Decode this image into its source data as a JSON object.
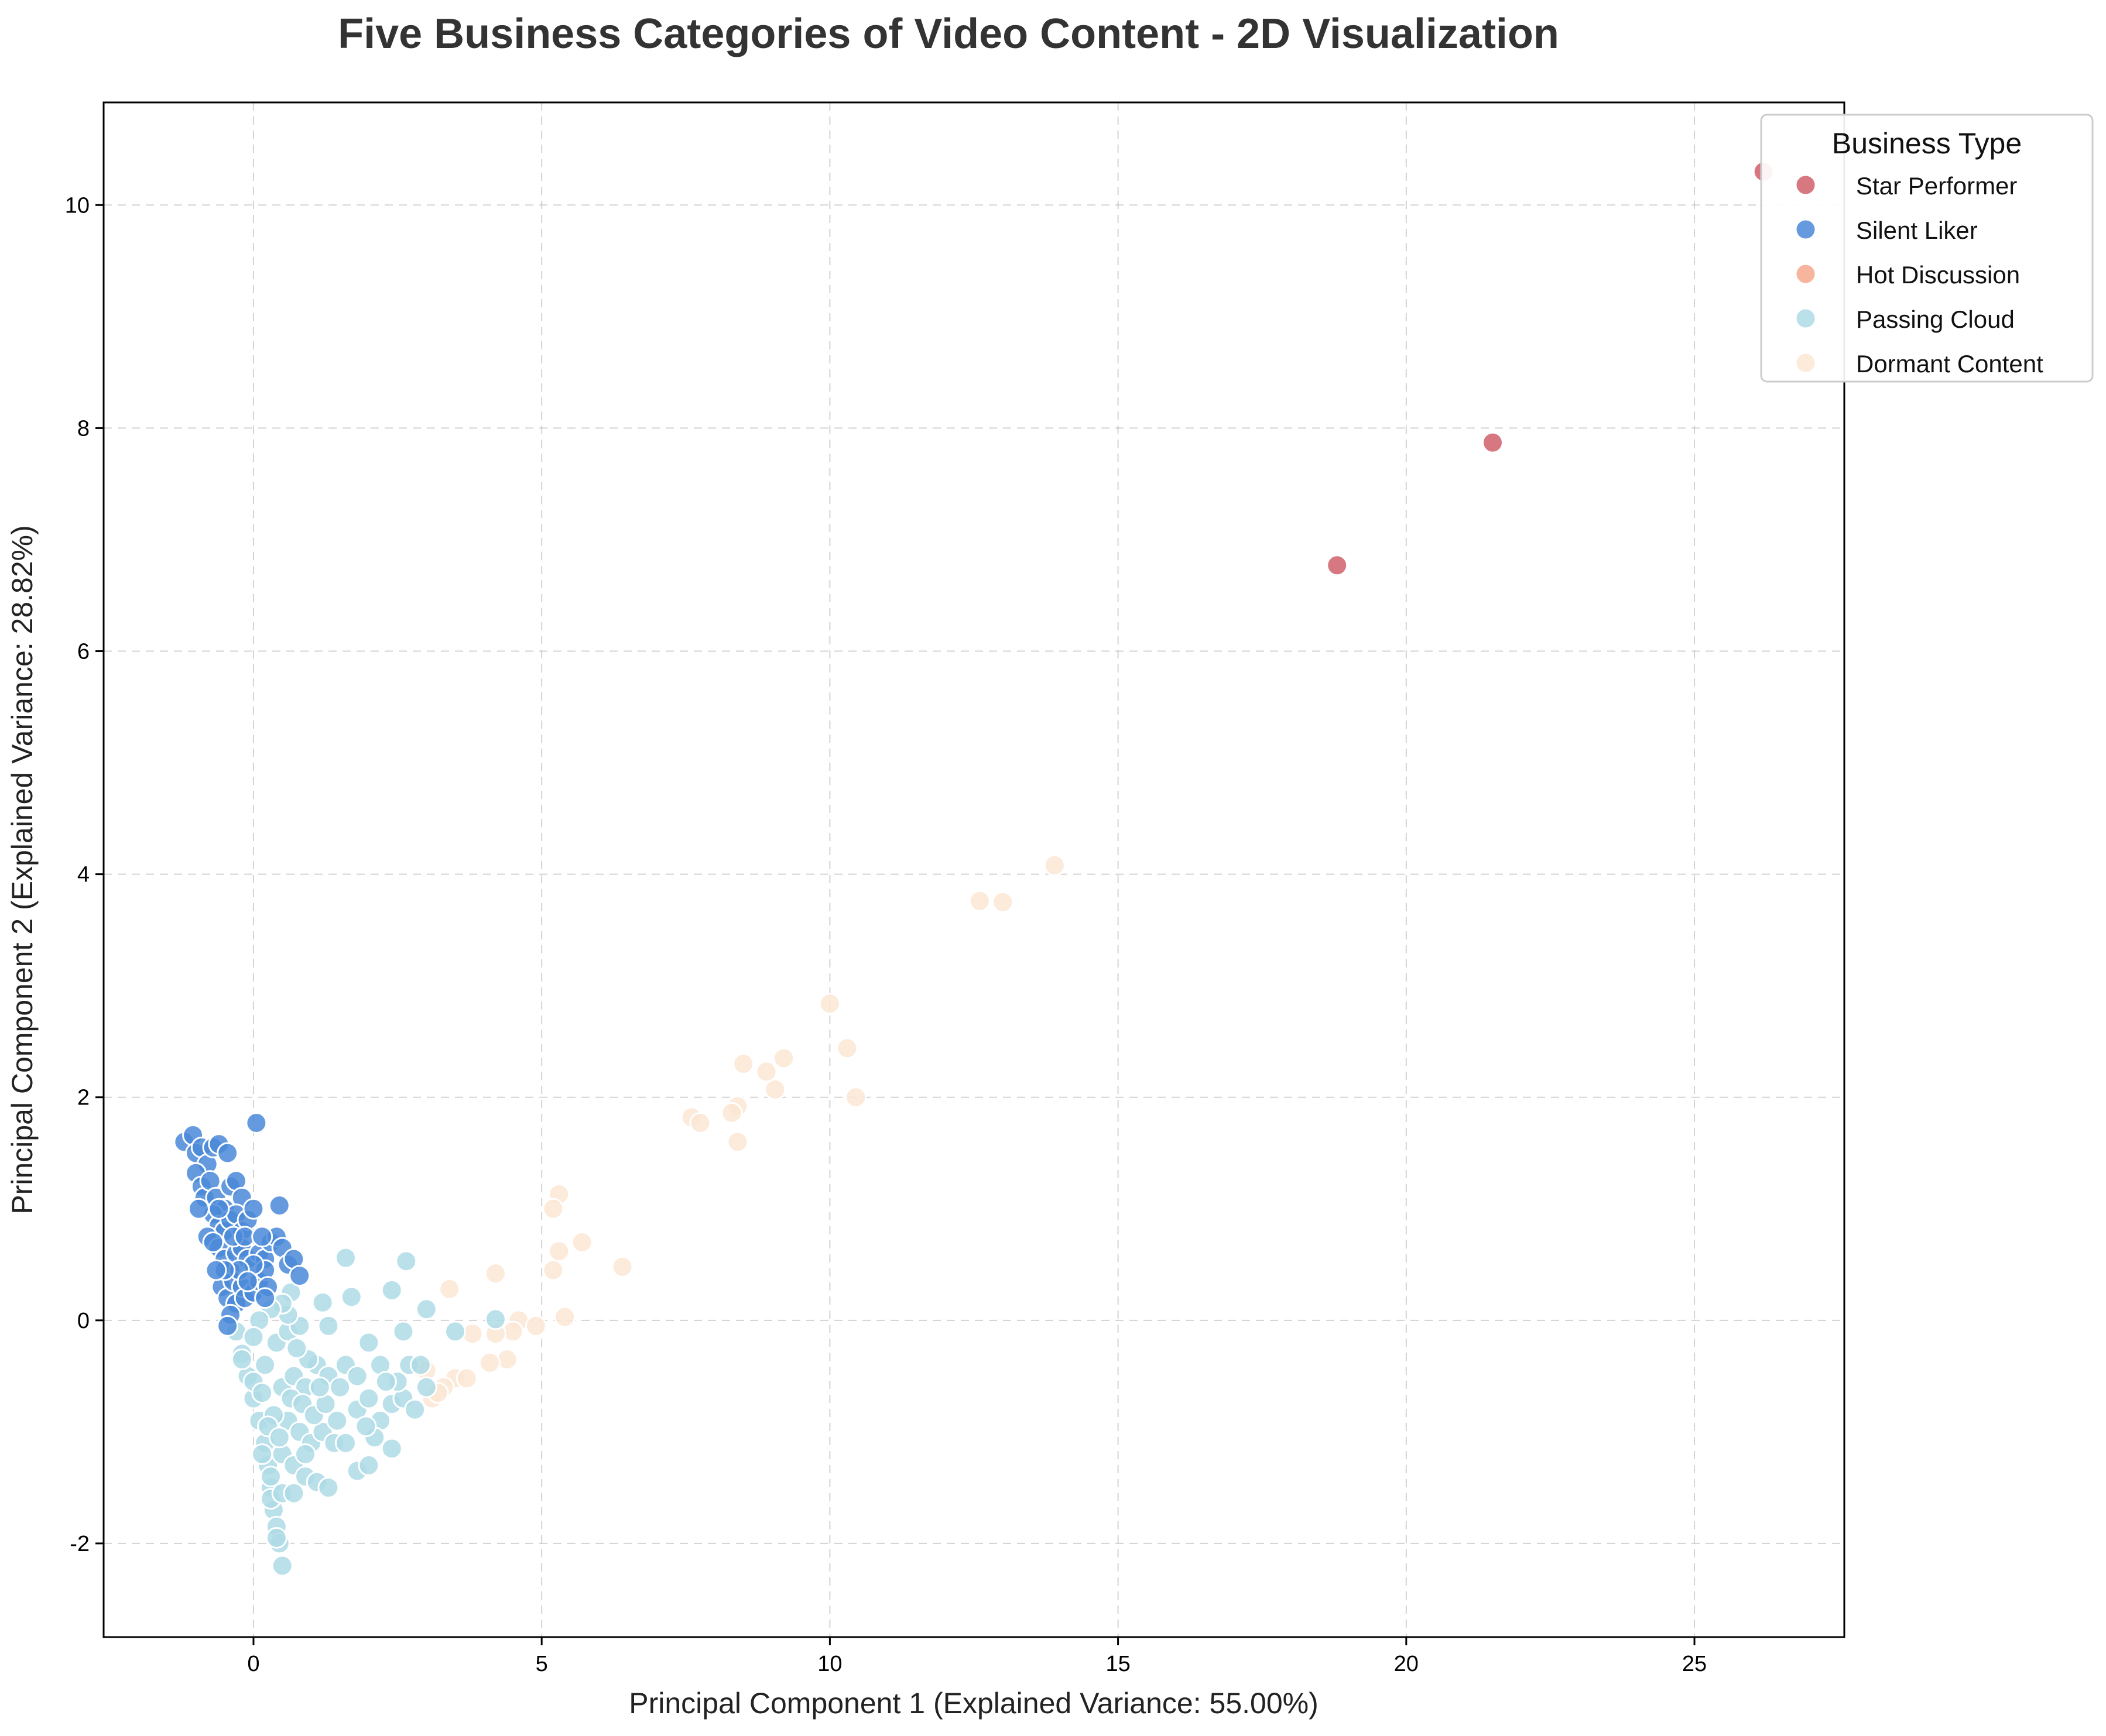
{
  "chart_data": {
    "type": "scatter",
    "title": "Five Business Categories of Video Content - 2D Visualization",
    "xlabel": "Principal Component 1 (Explained Variance: 55.00%)",
    "ylabel": "Principal Component 2 (Explained Variance: 28.82%)",
    "xlim": [
      -2.6,
      27.6
    ],
    "ylim": [
      -2.84,
      10.92
    ],
    "xticks": [
      0,
      5,
      10,
      15,
      20,
      25
    ],
    "yticks": [
      -2,
      0,
      2,
      4,
      6,
      8,
      10
    ],
    "xtick_labels": [
      "0",
      "5",
      "10",
      "15",
      "20",
      "25"
    ],
    "ytick_labels": [
      "-2",
      "0",
      "2",
      "4",
      "6",
      "8",
      "10"
    ],
    "grid": true,
    "legend": {
      "title": "Business Type",
      "placement": "upper-right-outside"
    },
    "series": [
      {
        "name": "Star Performer",
        "color": "#d0606a",
        "points": [
          [
            26.2,
            10.3
          ],
          [
            21.5,
            7.87
          ],
          [
            18.8,
            6.77
          ]
        ]
      },
      {
        "name": "Silent Liker",
        "color": "#4a8ad8",
        "points": [
          [
            -1.2,
            1.6
          ],
          [
            -1.05,
            1.66
          ],
          [
            -1.0,
            1.5
          ],
          [
            -0.9,
            1.55
          ],
          [
            -0.8,
            1.4
          ],
          [
            -0.7,
            1.55
          ],
          [
            -0.6,
            1.58
          ],
          [
            -0.45,
            1.5
          ],
          [
            -1.0,
            1.32
          ],
          [
            -0.9,
            1.2
          ],
          [
            -0.85,
            1.1
          ],
          [
            -0.75,
            1.25
          ],
          [
            -0.65,
            1.1
          ],
          [
            -0.5,
            1.0
          ],
          [
            -0.4,
            1.2
          ],
          [
            -0.3,
            1.25
          ],
          [
            -0.2,
            1.1
          ],
          [
            -0.7,
            0.95
          ],
          [
            -0.6,
            0.85
          ],
          [
            -0.5,
            0.8
          ],
          [
            -0.4,
            0.9
          ],
          [
            -0.3,
            0.95
          ],
          [
            -0.2,
            0.8
          ],
          [
            -0.1,
            0.9
          ],
          [
            0.0,
            1.0
          ],
          [
            -0.8,
            0.75
          ],
          [
            -0.6,
            0.65
          ],
          [
            -0.5,
            0.55
          ],
          [
            -0.4,
            0.45
          ],
          [
            -0.3,
            0.6
          ],
          [
            -0.2,
            0.65
          ],
          [
            -0.1,
            0.55
          ],
          [
            0.1,
            0.6
          ],
          [
            0.2,
            0.55
          ],
          [
            0.3,
            0.7
          ],
          [
            0.4,
            0.75
          ],
          [
            0.5,
            0.65
          ],
          [
            0.6,
            0.5
          ],
          [
            0.7,
            0.55
          ],
          [
            0.8,
            0.4
          ],
          [
            0.45,
            1.03
          ],
          [
            0.05,
            1.77
          ],
          [
            -0.55,
            0.3
          ],
          [
            -0.45,
            0.2
          ],
          [
            -0.35,
            0.35
          ],
          [
            -0.3,
            0.15
          ],
          [
            -0.4,
            0.05
          ],
          [
            -0.45,
            -0.05
          ],
          [
            -0.2,
            0.3
          ],
          [
            -0.15,
            0.2
          ],
          [
            0.0,
            0.25
          ],
          [
            0.1,
            0.35
          ],
          [
            0.2,
            0.45
          ],
          [
            0.25,
            0.3
          ],
          [
            -0.6,
            1.0
          ],
          [
            -0.7,
            0.7
          ],
          [
            -0.95,
            1.0
          ],
          [
            -0.35,
            0.75
          ],
          [
            0.0,
            0.5
          ],
          [
            -0.25,
            0.45
          ],
          [
            -0.5,
            0.45
          ],
          [
            -0.15,
            0.75
          ],
          [
            0.15,
            0.75
          ],
          [
            -0.65,
            0.45
          ],
          [
            -0.1,
            0.35
          ],
          [
            0.2,
            0.2
          ]
        ]
      },
      {
        "name": "Hot Discussion",
        "color": "#f7a88c",
        "points": []
      },
      {
        "name": "Passing Cloud",
        "color": "#aedbe6",
        "points": [
          [
            -0.3,
            -0.1
          ],
          [
            -0.2,
            -0.3
          ],
          [
            -0.1,
            -0.5
          ],
          [
            0.0,
            -0.7
          ],
          [
            0.1,
            -0.9
          ],
          [
            0.2,
            -1.1
          ],
          [
            0.25,
            -1.3
          ],
          [
            0.3,
            -1.5
          ],
          [
            0.35,
            -1.7
          ],
          [
            0.4,
            -1.85
          ],
          [
            0.45,
            -2.0
          ],
          [
            0.5,
            -2.2
          ],
          [
            0.3,
            -1.6
          ],
          [
            0.4,
            -1.95
          ],
          [
            0.0,
            -0.55
          ],
          [
            0.2,
            -0.4
          ],
          [
            0.4,
            -0.2
          ],
          [
            0.6,
            -0.1
          ],
          [
            0.8,
            -0.05
          ],
          [
            0.6,
            0.05
          ],
          [
            0.65,
            0.25
          ],
          [
            0.5,
            0.15
          ],
          [
            0.3,
            0.1
          ],
          [
            0.1,
            0.0
          ],
          [
            0.5,
            -0.6
          ],
          [
            0.7,
            -0.5
          ],
          [
            0.9,
            -0.6
          ],
          [
            1.1,
            -0.4
          ],
          [
            1.3,
            -0.5
          ],
          [
            1.5,
            -0.6
          ],
          [
            0.6,
            -0.9
          ],
          [
            0.8,
            -1.0
          ],
          [
            1.0,
            -1.1
          ],
          [
            1.2,
            -1.0
          ],
          [
            1.4,
            -1.1
          ],
          [
            1.6,
            -1.1
          ],
          [
            0.5,
            -1.2
          ],
          [
            0.7,
            -1.3
          ],
          [
            0.9,
            -1.4
          ],
          [
            1.1,
            -1.45
          ],
          [
            1.3,
            -1.5
          ],
          [
            0.5,
            -1.55
          ],
          [
            0.3,
            -1.4
          ],
          [
            0.7,
            -1.55
          ],
          [
            0.9,
            -1.2
          ],
          [
            1.8,
            -1.35
          ],
          [
            2.0,
            -1.3
          ],
          [
            2.4,
            -1.15
          ],
          [
            1.8,
            -0.8
          ],
          [
            2.0,
            -0.7
          ],
          [
            2.2,
            -0.9
          ],
          [
            2.4,
            -0.75
          ],
          [
            2.6,
            -0.7
          ],
          [
            2.8,
            -0.8
          ],
          [
            1.6,
            -0.4
          ],
          [
            1.8,
            -0.5
          ],
          [
            2.0,
            -0.2
          ],
          [
            2.2,
            -0.4
          ],
          [
            2.5,
            -0.55
          ],
          [
            2.7,
            -0.4
          ],
          [
            2.9,
            -0.4
          ],
          [
            3.0,
            -0.6
          ],
          [
            3.5,
            -0.1
          ],
          [
            4.2,
            0.01
          ],
          [
            2.6,
            -0.1
          ],
          [
            1.3,
            -0.05
          ],
          [
            1.6,
            0.56
          ],
          [
            2.65,
            0.53
          ],
          [
            2.4,
            0.27
          ],
          [
            1.7,
            0.21
          ],
          [
            3.0,
            0.1
          ],
          [
            1.2,
            0.16
          ],
          [
            0.0,
            -0.15
          ],
          [
            -0.2,
            -0.35
          ],
          [
            0.15,
            -0.65
          ],
          [
            0.35,
            -0.85
          ],
          [
            0.65,
            -0.7
          ],
          [
            0.85,
            -0.75
          ],
          [
            1.05,
            -0.85
          ],
          [
            1.25,
            -0.75
          ],
          [
            1.45,
            -0.9
          ],
          [
            1.15,
            -0.6
          ],
          [
            0.95,
            -0.35
          ],
          [
            0.75,
            -0.25
          ],
          [
            0.25,
            -0.95
          ],
          [
            0.45,
            -1.05
          ],
          [
            2.1,
            -1.05
          ],
          [
            2.3,
            -0.55
          ],
          [
            1.95,
            -0.95
          ],
          [
            0.15,
            -1.2
          ]
        ]
      },
      {
        "name": "Dormant Content",
        "color": "#fbe6d4",
        "points": [
          [
            13.9,
            4.08
          ],
          [
            12.6,
            3.76
          ],
          [
            13.0,
            3.75
          ],
          [
            10.0,
            2.84
          ],
          [
            10.3,
            2.44
          ],
          [
            9.2,
            2.35
          ],
          [
            8.5,
            2.3
          ],
          [
            8.9,
            2.23
          ],
          [
            9.05,
            2.07
          ],
          [
            10.45,
            2.0
          ],
          [
            8.4,
            1.92
          ],
          [
            8.3,
            1.86
          ],
          [
            7.6,
            1.82
          ],
          [
            7.75,
            1.77
          ],
          [
            8.4,
            1.6
          ],
          [
            5.3,
            1.13
          ],
          [
            5.2,
            1.0
          ],
          [
            5.7,
            0.7
          ],
          [
            5.3,
            0.62
          ],
          [
            6.4,
            0.48
          ],
          [
            5.2,
            0.45
          ],
          [
            4.2,
            0.42
          ],
          [
            3.4,
            0.28
          ],
          [
            5.4,
            0.03
          ],
          [
            4.6,
            0.0
          ],
          [
            4.9,
            -0.05
          ],
          [
            4.5,
            -0.1
          ],
          [
            3.8,
            -0.12
          ],
          [
            4.2,
            -0.12
          ],
          [
            2.9,
            -0.42
          ],
          [
            3.0,
            -0.45
          ],
          [
            3.5,
            -0.52
          ],
          [
            3.7,
            -0.52
          ],
          [
            3.3,
            -0.6
          ],
          [
            3.1,
            -0.7
          ],
          [
            4.4,
            -0.35
          ],
          [
            4.1,
            -0.38
          ],
          [
            3.2,
            -0.65
          ]
        ]
      }
    ]
  }
}
